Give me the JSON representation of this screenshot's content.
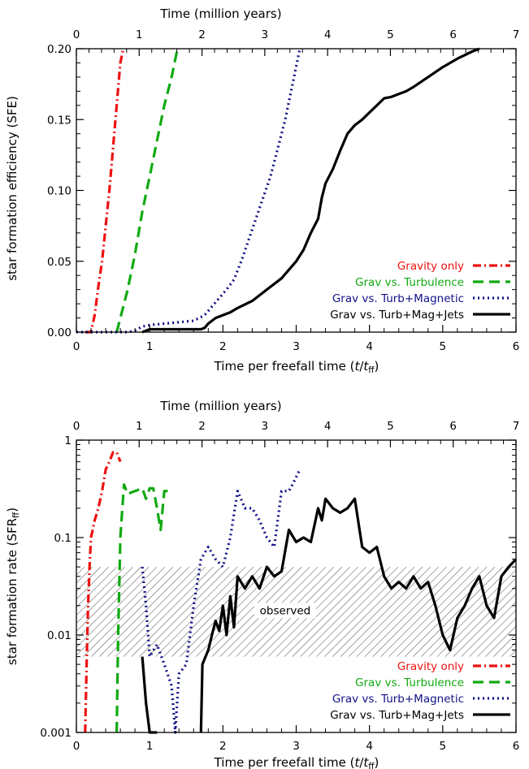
{
  "chart_data": [
    {
      "type": "line",
      "xlabel_prefix": "Time per freefall time ",
      "xlabel_math_t": "t",
      "xlabel_math_slash": "/",
      "xlabel_math_sub": "ff",
      "top_xlabel": "Time (million years)",
      "ylabel": "star formation efficiency (SFE)",
      "xlim": [
        0,
        6
      ],
      "top_xlim": [
        0,
        7
      ],
      "ylim": [
        0,
        0.2
      ],
      "x_ticks": [
        "0",
        "1",
        "2",
        "3",
        "4",
        "5",
        "6"
      ],
      "top_ticks": [
        "0",
        "1",
        "2",
        "3",
        "4",
        "5",
        "6",
        "7"
      ],
      "y_ticks": [
        "0.00",
        "0.05",
        "0.10",
        "0.15",
        "0.20"
      ],
      "y_tick_values": [
        0,
        0.05,
        0.1,
        0.15,
        0.2
      ],
      "legend_position": "bottom-right",
      "series": [
        {
          "name": "Gravity only",
          "color": "#ee1111",
          "dash": "dashdot",
          "points": [
            [
              0.12,
              0.0
            ],
            [
              0.2,
              0.0
            ],
            [
              0.25,
              0.012
            ],
            [
              0.3,
              0.032
            ],
            [
              0.35,
              0.05
            ],
            [
              0.4,
              0.075
            ],
            [
              0.45,
              0.1
            ],
            [
              0.5,
              0.13
            ],
            [
              0.55,
              0.16
            ],
            [
              0.6,
              0.19
            ],
            [
              0.64,
              0.2
            ]
          ]
        },
        {
          "name": "Grav vs. Turbulence",
          "color": "#11aa11",
          "dash": "dash",
          "points": [
            [
              0.55,
              0.0
            ],
            [
              0.6,
              0.01
            ],
            [
              0.7,
              0.03
            ],
            [
              0.8,
              0.055
            ],
            [
              0.9,
              0.085
            ],
            [
              1.0,
              0.11
            ],
            [
              1.1,
              0.135
            ],
            [
              1.2,
              0.16
            ],
            [
              1.3,
              0.18
            ],
            [
              1.38,
              0.2
            ]
          ]
        },
        {
          "name": "Grav vs. Turb+Magnetic",
          "color": "#111188",
          "dash": "dot",
          "points": [
            [
              0.0,
              0.0
            ],
            [
              0.6,
              0.0
            ],
            [
              0.7,
              0.0
            ],
            [
              0.8,
              0.001
            ],
            [
              0.9,
              0.004
            ],
            [
              1.0,
              0.005
            ],
            [
              1.2,
              0.006
            ],
            [
              1.4,
              0.007
            ],
            [
              1.6,
              0.008
            ],
            [
              1.75,
              0.012
            ],
            [
              1.85,
              0.018
            ],
            [
              1.95,
              0.024
            ],
            [
              2.05,
              0.03
            ],
            [
              2.15,
              0.037
            ],
            [
              2.25,
              0.05
            ],
            [
              2.35,
              0.065
            ],
            [
              2.45,
              0.08
            ],
            [
              2.55,
              0.095
            ],
            [
              2.65,
              0.11
            ],
            [
              2.75,
              0.13
            ],
            [
              2.85,
              0.15
            ],
            [
              2.95,
              0.175
            ],
            [
              3.05,
              0.2
            ]
          ]
        },
        {
          "name": "Grav vs. Turb+Mag+Jets",
          "color": "#000000",
          "dash": "solid",
          "points": [
            [
              0.9,
              0.0
            ],
            [
              1.0,
              0.002
            ],
            [
              1.2,
              0.002
            ],
            [
              1.5,
              0.002
            ],
            [
              1.7,
              0.002
            ],
            [
              1.75,
              0.003
            ],
            [
              1.8,
              0.006
            ],
            [
              1.9,
              0.01
            ],
            [
              2.0,
              0.012
            ],
            [
              2.1,
              0.014
            ],
            [
              2.2,
              0.017
            ],
            [
              2.4,
              0.022
            ],
            [
              2.6,
              0.03
            ],
            [
              2.8,
              0.038
            ],
            [
              3.0,
              0.05
            ],
            [
              3.1,
              0.058
            ],
            [
              3.2,
              0.07
            ],
            [
              3.3,
              0.08
            ],
            [
              3.35,
              0.095
            ],
            [
              3.4,
              0.105
            ],
            [
              3.5,
              0.115
            ],
            [
              3.6,
              0.128
            ],
            [
              3.7,
              0.14
            ],
            [
              3.8,
              0.146
            ],
            [
              3.9,
              0.15
            ],
            [
              4.0,
              0.155
            ],
            [
              4.1,
              0.16
            ],
            [
              4.2,
              0.165
            ],
            [
              4.3,
              0.166
            ],
            [
              4.4,
              0.168
            ],
            [
              4.5,
              0.17
            ],
            [
              4.6,
              0.173
            ],
            [
              4.8,
              0.18
            ],
            [
              5.0,
              0.187
            ],
            [
              5.2,
              0.193
            ],
            [
              5.4,
              0.198
            ],
            [
              5.5,
              0.2
            ]
          ]
        }
      ]
    },
    {
      "type": "line",
      "xlabel_prefix": "Time per freefall time ",
      "xlabel_math_t": "t",
      "xlabel_math_slash": "/",
      "xlabel_math_sub": "ff",
      "top_xlabel": "Time (million years)",
      "ylabel_prefix": "star formation rate (SFR",
      "ylabel_sub": "ff",
      "ylabel_suffix": ")",
      "xlim": [
        0,
        6
      ],
      "top_xlim": [
        0,
        7
      ],
      "ylim": [
        0.001,
        1
      ],
      "yscale": "log",
      "x_ticks": [
        "0",
        "1",
        "2",
        "3",
        "4",
        "5",
        "6"
      ],
      "top_ticks": [
        "0",
        "1",
        "2",
        "3",
        "4",
        "5",
        "6",
        "7"
      ],
      "y_ticks": [
        "0.001",
        "0.01",
        "0.1",
        "1"
      ],
      "y_tick_values": [
        0.001,
        0.01,
        0.1,
        1
      ],
      "shaded_band": {
        "ymin": 0.006,
        "ymax": 0.05,
        "label": "observed"
      },
      "legend_position": "bottom-right",
      "series": [
        {
          "name": "Gravity only",
          "color": "#ee1111",
          "dash": "dashdot",
          "points": [
            [
              0.12,
              0.001
            ],
            [
              0.14,
              0.005
            ],
            [
              0.16,
              0.02
            ],
            [
              0.18,
              0.05
            ],
            [
              0.2,
              0.1
            ],
            [
              0.25,
              0.15
            ],
            [
              0.3,
              0.2
            ],
            [
              0.35,
              0.3
            ],
            [
              0.4,
              0.5
            ],
            [
              0.45,
              0.6
            ],
            [
              0.5,
              0.75
            ],
            [
              0.55,
              0.75
            ],
            [
              0.6,
              0.6
            ]
          ]
        },
        {
          "name": "Grav vs. Turbulence",
          "color": "#11aa11",
          "dash": "dash",
          "points": [
            [
              0.55,
              0.001
            ],
            [
              0.57,
              0.01
            ],
            [
              0.6,
              0.1
            ],
            [
              0.65,
              0.35
            ],
            [
              0.7,
              0.28
            ],
            [
              0.8,
              0.3
            ],
            [
              0.9,
              0.32
            ],
            [
              0.95,
              0.25
            ],
            [
              1.0,
              0.32
            ],
            [
              1.05,
              0.32
            ],
            [
              1.1,
              0.2
            ],
            [
              1.15,
              0.12
            ],
            [
              1.2,
              0.3
            ],
            [
              1.3,
              0.3
            ]
          ]
        },
        {
          "name": "Grav vs. Turb+Magnetic",
          "color": "#111188",
          "dash": "dot",
          "points": [
            [
              0.9,
              0.05
            ],
            [
              0.95,
              0.02
            ],
            [
              1.0,
              0.006
            ],
            [
              1.1,
              0.008
            ],
            [
              1.2,
              0.005
            ],
            [
              1.3,
              0.003
            ],
            [
              1.35,
              0.001
            ],
            [
              1.4,
              0.004
            ],
            [
              1.5,
              0.005
            ],
            [
              1.6,
              0.02
            ],
            [
              1.7,
              0.06
            ],
            [
              1.8,
              0.08
            ],
            [
              1.9,
              0.06
            ],
            [
              2.0,
              0.05
            ],
            [
              2.1,
              0.1
            ],
            [
              2.2,
              0.3
            ],
            [
              2.3,
              0.2
            ],
            [
              2.4,
              0.2
            ],
            [
              2.5,
              0.15
            ],
            [
              2.6,
              0.1
            ],
            [
              2.7,
              0.08
            ],
            [
              2.8,
              0.3
            ],
            [
              2.9,
              0.3
            ],
            [
              2.95,
              0.35
            ],
            [
              3.05,
              0.5
            ]
          ]
        },
        {
          "name": "Grav vs. Turb+Mag+Jets",
          "color": "#000000",
          "dash": "solid",
          "points": [
            [
              0.9,
              0.006
            ],
            [
              0.95,
              0.002
            ],
            [
              1.0,
              0.001
            ],
            [
              1.05,
              0.001
            ],
            [
              1.1,
              0.001
            ]
          ],
          "points2": [
            [
              1.7,
              0.001
            ],
            [
              1.72,
              0.005
            ],
            [
              1.8,
              0.007
            ],
            [
              1.85,
              0.01
            ],
            [
              1.9,
              0.014
            ],
            [
              1.95,
              0.011
            ],
            [
              2.0,
              0.02
            ],
            [
              2.05,
              0.01
            ],
            [
              2.1,
              0.025
            ],
            [
              2.15,
              0.012
            ],
            [
              2.2,
              0.04
            ],
            [
              2.3,
              0.03
            ],
            [
              2.4,
              0.04
            ],
            [
              2.5,
              0.03
            ],
            [
              2.6,
              0.05
            ],
            [
              2.7,
              0.04
            ],
            [
              2.8,
              0.045
            ],
            [
              2.9,
              0.12
            ],
            [
              3.0,
              0.09
            ],
            [
              3.1,
              0.1
            ],
            [
              3.2,
              0.09
            ],
            [
              3.3,
              0.2
            ],
            [
              3.35,
              0.15
            ],
            [
              3.4,
              0.25
            ],
            [
              3.5,
              0.2
            ],
            [
              3.6,
              0.18
            ],
            [
              3.7,
              0.2
            ],
            [
              3.8,
              0.25
            ],
            [
              3.9,
              0.08
            ],
            [
              4.0,
              0.07
            ],
            [
              4.1,
              0.08
            ],
            [
              4.2,
              0.04
            ],
            [
              4.3,
              0.03
            ],
            [
              4.4,
              0.035
            ],
            [
              4.5,
              0.03
            ],
            [
              4.6,
              0.04
            ],
            [
              4.7,
              0.03
            ],
            [
              4.8,
              0.035
            ],
            [
              4.9,
              0.02
            ],
            [
              5.0,
              0.01
            ],
            [
              5.1,
              0.007
            ],
            [
              5.2,
              0.015
            ],
            [
              5.3,
              0.02
            ],
            [
              5.4,
              0.03
            ],
            [
              5.5,
              0.04
            ],
            [
              5.6,
              0.02
            ],
            [
              5.7,
              0.015
            ],
            [
              5.8,
              0.04
            ],
            [
              5.9,
              0.05
            ],
            [
              6.0,
              0.06
            ]
          ]
        }
      ]
    }
  ]
}
